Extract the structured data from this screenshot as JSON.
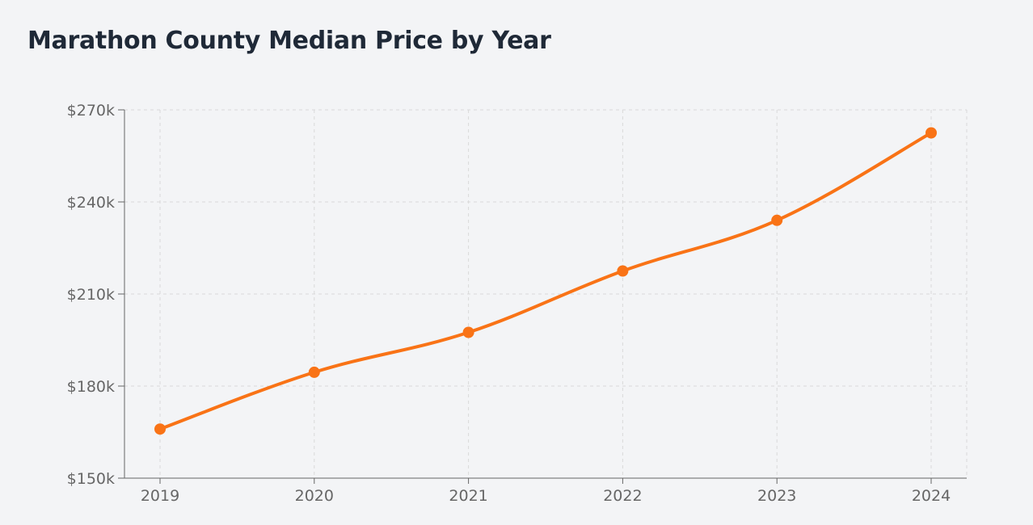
{
  "colors": {
    "line": "#f97316",
    "grid": "#d9d9d9",
    "axis": "#666666",
    "background": "#f3f4f6",
    "title": "#1f2937"
  },
  "chart_data": {
    "type": "line",
    "title": "Marathon County Median Price by Year",
    "xlabel": "",
    "ylabel": "",
    "categories": [
      "2019",
      "2020",
      "2021",
      "2022",
      "2023",
      "2024"
    ],
    "series": [
      {
        "name": "Median Price",
        "values": [
          166000,
          184500,
          197500,
          217500,
          234000,
          262500
        ]
      }
    ],
    "ylim": [
      150000,
      270000
    ],
    "yticks": [
      150000,
      180000,
      210000,
      240000,
      270000
    ],
    "ytick_labels": [
      "$150k",
      "$180k",
      "$210k",
      "$240k",
      "$270k"
    ],
    "grid": true,
    "legend": "none"
  }
}
